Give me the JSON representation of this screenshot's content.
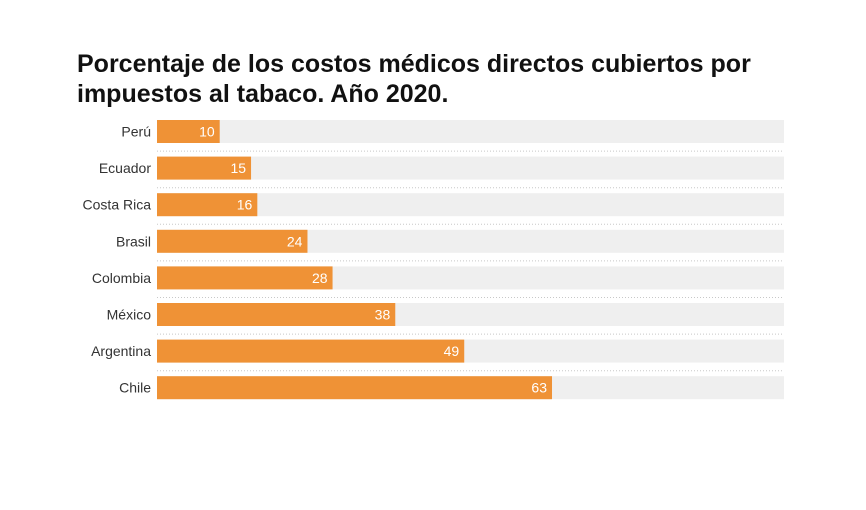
{
  "title": "Porcentaje de los costos médicos directos cubiertos por impuestos al tabaco. Año 2020.",
  "chart_data": {
    "type": "bar",
    "orientation": "horizontal",
    "title": "Porcentaje de los costos médicos directos cubiertos por impuestos al tabaco. Año 2020.",
    "categories": [
      "Perú",
      "Ecuador",
      "Costa Rica",
      "Brasil",
      "Colombia",
      "México",
      "Argentina",
      "Chile"
    ],
    "values": [
      10,
      15,
      16,
      24,
      28,
      38,
      49,
      63
    ],
    "xlim": [
      0,
      100
    ],
    "grid": false,
    "bar_color": "#ef9236",
    "track_color": "#efefef",
    "label_color": "#ffffff"
  }
}
